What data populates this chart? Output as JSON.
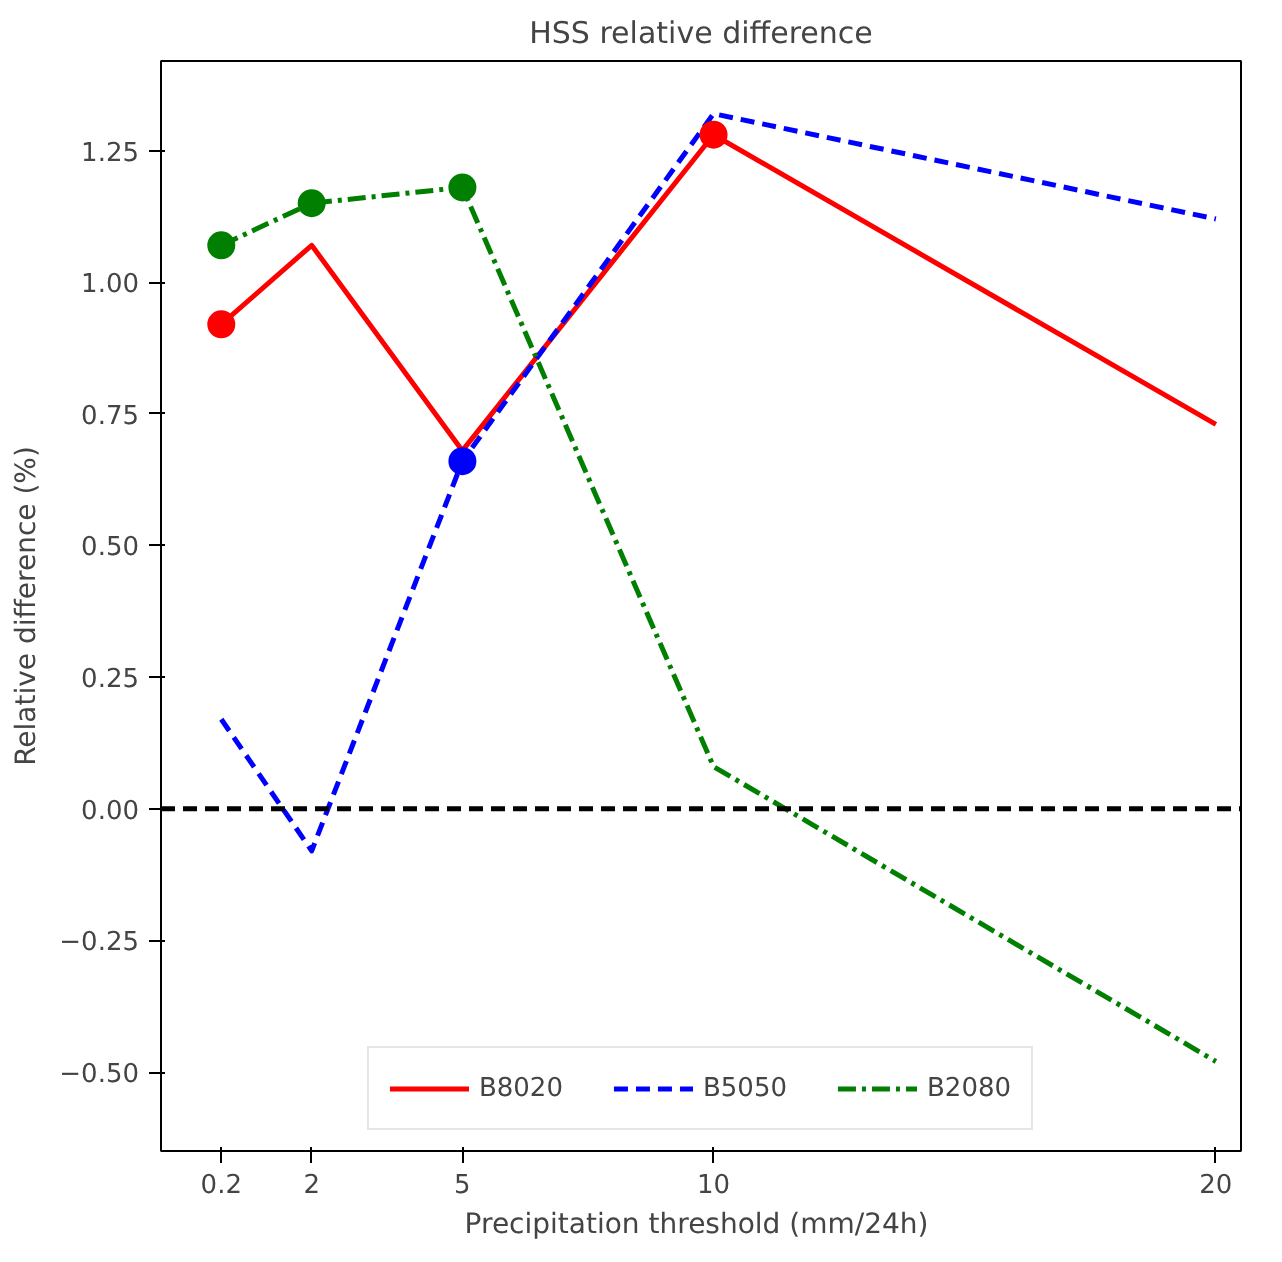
{
  "chart_data": {
    "type": "line",
    "title": "HSS relative difference",
    "xlabel": "Precipitation threshold  (mm/24h)",
    "ylabel": "Relative difference (%)",
    "x": [
      0.2,
      2,
      5,
      10,
      20
    ],
    "xlim": [
      -1.0,
      20.5
    ],
    "xticks": [
      0.2,
      2,
      5,
      10,
      20
    ],
    "ylim": [
      -0.65,
      1.42
    ],
    "yticks": [
      {
        "value": -0.5,
        "label": "−0.50"
      },
      {
        "value": -0.25,
        "label": "−0.25"
      },
      {
        "value": 0,
        "label": "0.00"
      },
      {
        "value": 0.25,
        "label": "0.25"
      },
      {
        "value": 0.5,
        "label": "0.50"
      },
      {
        "value": 0.75,
        "label": "0.75"
      },
      {
        "value": 1.0,
        "label": "1.00"
      },
      {
        "value": 1.25,
        "label": "1.25"
      }
    ],
    "grid": false,
    "legend": "bottom",
    "marker": "none",
    "series": [
      {
        "name": "B8020",
        "color": "#ff0000",
        "line_style": "solid",
        "values": [
          0.92,
          1.07,
          0.68,
          1.28,
          0.73
        ]
      },
      {
        "name": "B5050",
        "color": "#0000ff",
        "line_style": "dashed",
        "values": [
          0.17,
          -0.08,
          0.66,
          1.32,
          1.12
        ]
      },
      {
        "name": "B2080",
        "color": "#007f00",
        "line_style": "dashdot",
        "values": [
          1.07,
          1.15,
          1.18,
          0.08,
          -0.48
        ]
      },
      {
        "type": "scatter",
        "marker": "circle",
        "color": "#ff0000",
        "values": [
          0.92,
          null,
          null,
          1.28,
          null
        ]
      },
      {
        "type": "scatter",
        "marker": "circle",
        "color": "#0000ff",
        "values": [
          null,
          null,
          0.66,
          null,
          null
        ]
      },
      {
        "type": "scatter",
        "marker": "circle",
        "color": "#007f00",
        "values": [
          1.07,
          1.15,
          1.18,
          null,
          null
        ]
      }
    ],
    "ref_lines": [
      {
        "axis": "y",
        "value": 0,
        "color": "#000000",
        "line_style": "dashed"
      }
    ]
  }
}
